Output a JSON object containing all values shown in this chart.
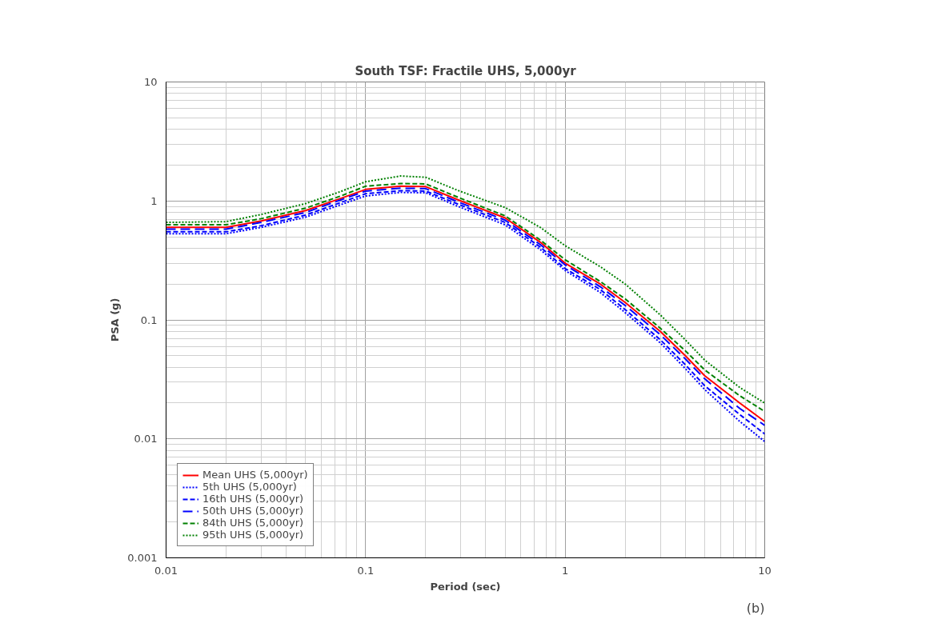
{
  "chart_data": {
    "type": "line",
    "title": "South TSF: Fractile UHS, 5,000yr",
    "xlabel": "Period (sec)",
    "ylabel": "PSA (g)",
    "log": "xy",
    "grid": true,
    "legend": "bottom left",
    "marker": "none",
    "xlim": [
      0.01,
      10
    ],
    "xticks": [
      0.01,
      0.1,
      1,
      10
    ],
    "ylim": [
      0.001,
      10
    ],
    "yticks": [
      0.001,
      0.01,
      0.1,
      1,
      10
    ],
    "x": [
      0.01,
      0.02,
      0.03,
      0.05,
      0.075,
      0.1,
      0.15,
      0.2,
      0.3,
      0.5,
      0.75,
      1,
      1.5,
      2,
      3,
      4,
      5,
      7.5,
      10
    ],
    "series": [
      {
        "name": "Mean UHS (5,000yr)",
        "color": "#ff0000",
        "line_style": "solid",
        "values": [
          0.6,
          0.6,
          0.68,
          0.83,
          1.05,
          1.25,
          1.33,
          1.32,
          1.0,
          0.72,
          0.45,
          0.3,
          0.2,
          0.14,
          0.08,
          0.05,
          0.034,
          0.02,
          0.014
        ]
      },
      {
        "name": "5th UHS (5,000yr)",
        "color": "#0000ff",
        "line_style": "dotted",
        "values": [
          0.53,
          0.53,
          0.6,
          0.73,
          0.93,
          1.1,
          1.18,
          1.17,
          0.88,
          0.63,
          0.39,
          0.26,
          0.17,
          0.115,
          0.064,
          0.039,
          0.026,
          0.014,
          0.0095
        ]
      },
      {
        "name": "16th UHS (5,000yr)",
        "color": "#0000ff",
        "line_style": "dashed",
        "values": [
          0.55,
          0.55,
          0.62,
          0.76,
          0.97,
          1.15,
          1.22,
          1.21,
          0.92,
          0.66,
          0.41,
          0.27,
          0.18,
          0.122,
          0.068,
          0.042,
          0.028,
          0.016,
          0.011
        ]
      },
      {
        "name": "50th UHS (5,000yr)",
        "color": "#0000ff",
        "line_style": "dashed",
        "values": [
          0.58,
          0.58,
          0.66,
          0.8,
          1.02,
          1.21,
          1.28,
          1.27,
          0.96,
          0.69,
          0.43,
          0.29,
          0.19,
          0.132,
          0.075,
          0.047,
          0.032,
          0.018,
          0.013
        ]
      },
      {
        "name": "84th UHS (5,000yr)",
        "color": "#008000",
        "line_style": "dashed",
        "values": [
          0.63,
          0.63,
          0.71,
          0.87,
          1.1,
          1.33,
          1.4,
          1.39,
          1.05,
          0.75,
          0.47,
          0.32,
          0.21,
          0.15,
          0.085,
          0.055,
          0.038,
          0.023,
          0.017
        ]
      },
      {
        "name": "95th UHS (5,000yr)",
        "color": "#008000",
        "line_style": "dotted",
        "values": [
          0.66,
          0.67,
          0.77,
          0.95,
          1.2,
          1.45,
          1.62,
          1.58,
          1.2,
          0.88,
          0.6,
          0.42,
          0.28,
          0.2,
          0.11,
          0.068,
          0.046,
          0.027,
          0.02
        ]
      }
    ],
    "annotations": [
      "(b)"
    ]
  }
}
